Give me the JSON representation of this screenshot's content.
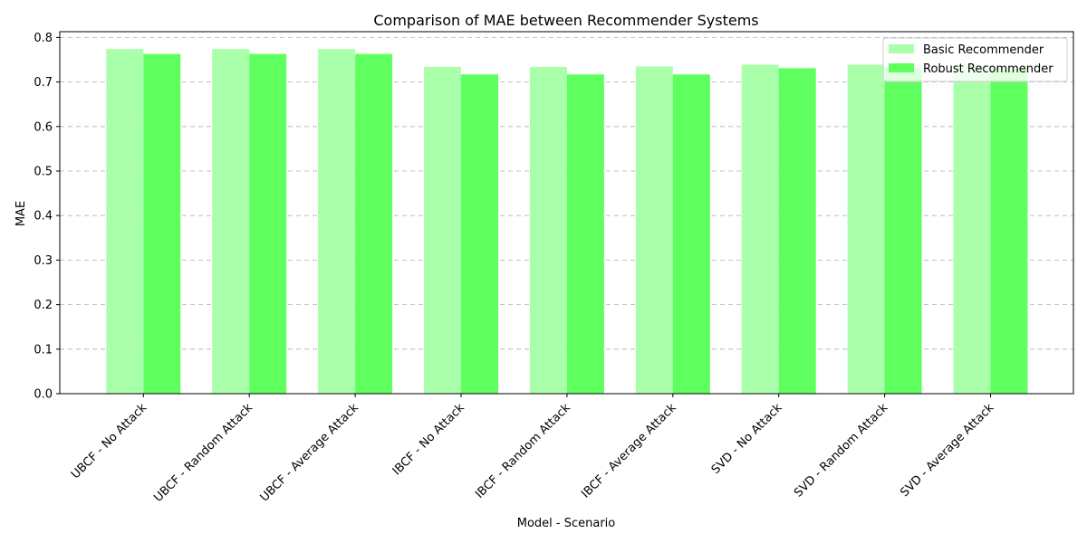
{
  "chart_data": {
    "type": "bar",
    "title": "Comparison of MAE between Recommender Systems",
    "xlabel": "Model - Scenario",
    "ylabel": "MAE",
    "ylim": [
      0,
      0.813
    ],
    "yticks": [
      "0.0",
      "0.1",
      "0.2",
      "0.3",
      "0.4",
      "0.5",
      "0.6",
      "0.7",
      "0.8"
    ],
    "grid": "y",
    "legend_position": "top-right",
    "categories": [
      "UBCF - No Attack",
      "UBCF - Random Attack",
      "UBCF - Average Attack",
      "IBCF - No Attack",
      "IBCF - Random Attack",
      "IBCF - Average Attack",
      "SVD - No Attack",
      "SVD - Random Attack",
      "SVD - Average Attack"
    ],
    "series": [
      {
        "name": "Basic Recommender",
        "color": "#aaffaa",
        "values": [
          0.774,
          0.774,
          0.774,
          0.734,
          0.734,
          0.735,
          0.739,
          0.739,
          0.739
        ]
      },
      {
        "name": "Robust Recommender",
        "color": "#5fff5f",
        "values": [
          0.763,
          0.763,
          0.763,
          0.717,
          0.717,
          0.717,
          0.731,
          0.731,
          0.731
        ]
      }
    ]
  }
}
